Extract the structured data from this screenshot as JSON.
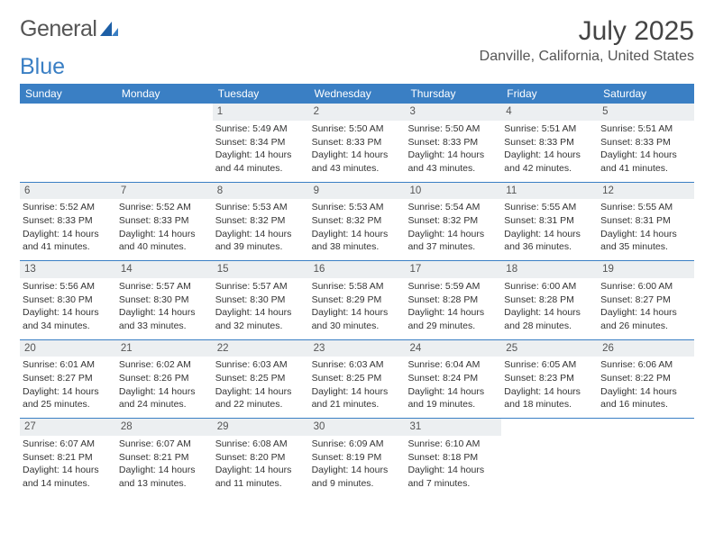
{
  "brand": {
    "word1": "General",
    "word2": "Blue"
  },
  "title": "July 2025",
  "location": "Danville, California, United States",
  "day_names": [
    "Sunday",
    "Monday",
    "Tuesday",
    "Wednesday",
    "Thursday",
    "Friday",
    "Saturday"
  ],
  "colors": {
    "header_bg": "#3a7fc4",
    "daynum_bg": "#eceff1",
    "border": "#3a7fc4",
    "text": "#333333"
  },
  "weeks": [
    [
      null,
      null,
      {
        "n": "1",
        "sunrise": "Sunrise: 5:49 AM",
        "sunset": "Sunset: 8:34 PM",
        "d1": "Daylight: 14 hours",
        "d2": "and 44 minutes."
      },
      {
        "n": "2",
        "sunrise": "Sunrise: 5:50 AM",
        "sunset": "Sunset: 8:33 PM",
        "d1": "Daylight: 14 hours",
        "d2": "and 43 minutes."
      },
      {
        "n": "3",
        "sunrise": "Sunrise: 5:50 AM",
        "sunset": "Sunset: 8:33 PM",
        "d1": "Daylight: 14 hours",
        "d2": "and 43 minutes."
      },
      {
        "n": "4",
        "sunrise": "Sunrise: 5:51 AM",
        "sunset": "Sunset: 8:33 PM",
        "d1": "Daylight: 14 hours",
        "d2": "and 42 minutes."
      },
      {
        "n": "5",
        "sunrise": "Sunrise: 5:51 AM",
        "sunset": "Sunset: 8:33 PM",
        "d1": "Daylight: 14 hours",
        "d2": "and 41 minutes."
      }
    ],
    [
      {
        "n": "6",
        "sunrise": "Sunrise: 5:52 AM",
        "sunset": "Sunset: 8:33 PM",
        "d1": "Daylight: 14 hours",
        "d2": "and 41 minutes."
      },
      {
        "n": "7",
        "sunrise": "Sunrise: 5:52 AM",
        "sunset": "Sunset: 8:33 PM",
        "d1": "Daylight: 14 hours",
        "d2": "and 40 minutes."
      },
      {
        "n": "8",
        "sunrise": "Sunrise: 5:53 AM",
        "sunset": "Sunset: 8:32 PM",
        "d1": "Daylight: 14 hours",
        "d2": "and 39 minutes."
      },
      {
        "n": "9",
        "sunrise": "Sunrise: 5:53 AM",
        "sunset": "Sunset: 8:32 PM",
        "d1": "Daylight: 14 hours",
        "d2": "and 38 minutes."
      },
      {
        "n": "10",
        "sunrise": "Sunrise: 5:54 AM",
        "sunset": "Sunset: 8:32 PM",
        "d1": "Daylight: 14 hours",
        "d2": "and 37 minutes."
      },
      {
        "n": "11",
        "sunrise": "Sunrise: 5:55 AM",
        "sunset": "Sunset: 8:31 PM",
        "d1": "Daylight: 14 hours",
        "d2": "and 36 minutes."
      },
      {
        "n": "12",
        "sunrise": "Sunrise: 5:55 AM",
        "sunset": "Sunset: 8:31 PM",
        "d1": "Daylight: 14 hours",
        "d2": "and 35 minutes."
      }
    ],
    [
      {
        "n": "13",
        "sunrise": "Sunrise: 5:56 AM",
        "sunset": "Sunset: 8:30 PM",
        "d1": "Daylight: 14 hours",
        "d2": "and 34 minutes."
      },
      {
        "n": "14",
        "sunrise": "Sunrise: 5:57 AM",
        "sunset": "Sunset: 8:30 PM",
        "d1": "Daylight: 14 hours",
        "d2": "and 33 minutes."
      },
      {
        "n": "15",
        "sunrise": "Sunrise: 5:57 AM",
        "sunset": "Sunset: 8:30 PM",
        "d1": "Daylight: 14 hours",
        "d2": "and 32 minutes."
      },
      {
        "n": "16",
        "sunrise": "Sunrise: 5:58 AM",
        "sunset": "Sunset: 8:29 PM",
        "d1": "Daylight: 14 hours",
        "d2": "and 30 minutes."
      },
      {
        "n": "17",
        "sunrise": "Sunrise: 5:59 AM",
        "sunset": "Sunset: 8:28 PM",
        "d1": "Daylight: 14 hours",
        "d2": "and 29 minutes."
      },
      {
        "n": "18",
        "sunrise": "Sunrise: 6:00 AM",
        "sunset": "Sunset: 8:28 PM",
        "d1": "Daylight: 14 hours",
        "d2": "and 28 minutes."
      },
      {
        "n": "19",
        "sunrise": "Sunrise: 6:00 AM",
        "sunset": "Sunset: 8:27 PM",
        "d1": "Daylight: 14 hours",
        "d2": "and 26 minutes."
      }
    ],
    [
      {
        "n": "20",
        "sunrise": "Sunrise: 6:01 AM",
        "sunset": "Sunset: 8:27 PM",
        "d1": "Daylight: 14 hours",
        "d2": "and 25 minutes."
      },
      {
        "n": "21",
        "sunrise": "Sunrise: 6:02 AM",
        "sunset": "Sunset: 8:26 PM",
        "d1": "Daylight: 14 hours",
        "d2": "and 24 minutes."
      },
      {
        "n": "22",
        "sunrise": "Sunrise: 6:03 AM",
        "sunset": "Sunset: 8:25 PM",
        "d1": "Daylight: 14 hours",
        "d2": "and 22 minutes."
      },
      {
        "n": "23",
        "sunrise": "Sunrise: 6:03 AM",
        "sunset": "Sunset: 8:25 PM",
        "d1": "Daylight: 14 hours",
        "d2": "and 21 minutes."
      },
      {
        "n": "24",
        "sunrise": "Sunrise: 6:04 AM",
        "sunset": "Sunset: 8:24 PM",
        "d1": "Daylight: 14 hours",
        "d2": "and 19 minutes."
      },
      {
        "n": "25",
        "sunrise": "Sunrise: 6:05 AM",
        "sunset": "Sunset: 8:23 PM",
        "d1": "Daylight: 14 hours",
        "d2": "and 18 minutes."
      },
      {
        "n": "26",
        "sunrise": "Sunrise: 6:06 AM",
        "sunset": "Sunset: 8:22 PM",
        "d1": "Daylight: 14 hours",
        "d2": "and 16 minutes."
      }
    ],
    [
      {
        "n": "27",
        "sunrise": "Sunrise: 6:07 AM",
        "sunset": "Sunset: 8:21 PM",
        "d1": "Daylight: 14 hours",
        "d2": "and 14 minutes."
      },
      {
        "n": "28",
        "sunrise": "Sunrise: 6:07 AM",
        "sunset": "Sunset: 8:21 PM",
        "d1": "Daylight: 14 hours",
        "d2": "and 13 minutes."
      },
      {
        "n": "29",
        "sunrise": "Sunrise: 6:08 AM",
        "sunset": "Sunset: 8:20 PM",
        "d1": "Daylight: 14 hours",
        "d2": "and 11 minutes."
      },
      {
        "n": "30",
        "sunrise": "Sunrise: 6:09 AM",
        "sunset": "Sunset: 8:19 PM",
        "d1": "Daylight: 14 hours",
        "d2": "and 9 minutes."
      },
      {
        "n": "31",
        "sunrise": "Sunrise: 6:10 AM",
        "sunset": "Sunset: 8:18 PM",
        "d1": "Daylight: 14 hours",
        "d2": "and 7 minutes."
      },
      null,
      null
    ]
  ]
}
